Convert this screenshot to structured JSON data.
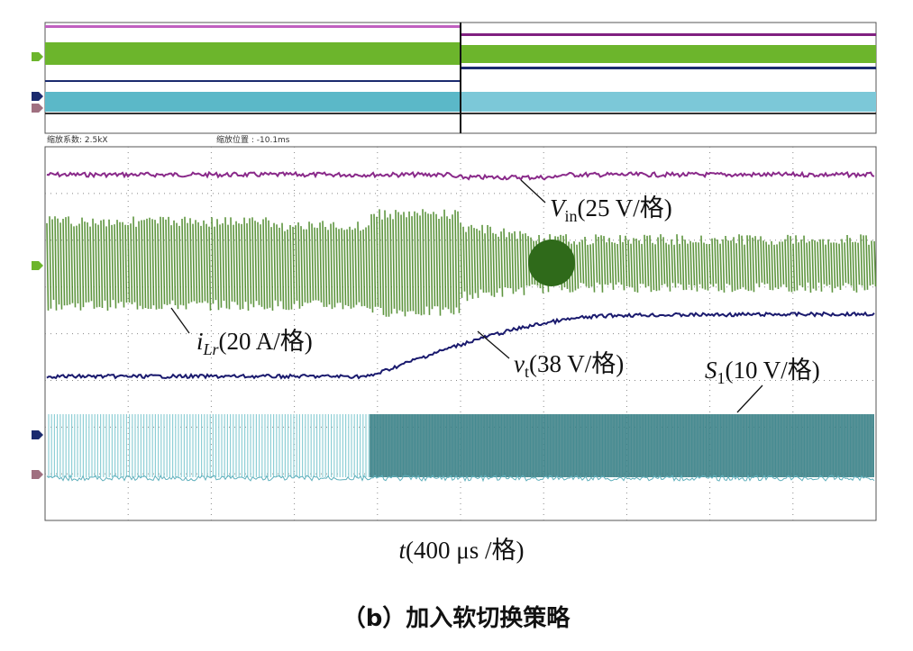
{
  "zoom_info": {
    "factor": "缩放系数: 2.5kX",
    "position": "缩放位置 : -10.1ms"
  },
  "annotations": [
    {
      "symbol": "V",
      "subscript": "in",
      "scale": "(25 V/格)"
    },
    {
      "symbol": "i",
      "subscript": "Lr",
      "scale": "(20 A/格)"
    },
    {
      "symbol": "v",
      "subscript": "t",
      "scale": "(38 V/格)"
    },
    {
      "symbol": "S",
      "subscript": "1",
      "scale": "(10 V/格)"
    }
  ],
  "x_axis_label": {
    "symbol": "t",
    "scale": "(400 μs /格)"
  },
  "caption": "（b）加入软切换策略"
}
